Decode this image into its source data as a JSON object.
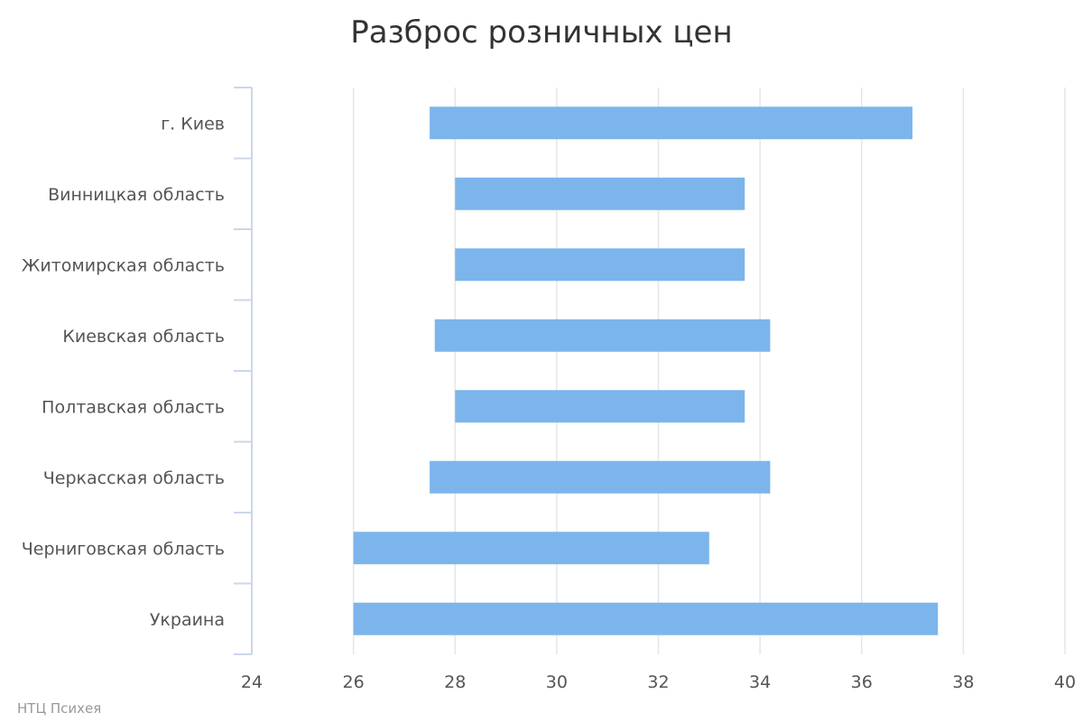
{
  "chart_data": {
    "type": "bar",
    "orientation": "horizontal",
    "subtype": "range",
    "title": "Разброс розничных цен",
    "categories": [
      "г. Киев",
      "Винницкая область",
      "Житомирская область",
      "Киевская область",
      "Полтавская область",
      "Черкасская область",
      "Черниговская область",
      "Украина"
    ],
    "series": [
      {
        "ranges": [
          [
            27.5,
            37.0
          ],
          [
            28.0,
            33.7
          ],
          [
            28.0,
            33.7
          ],
          [
            27.6,
            34.2
          ],
          [
            28.0,
            33.7
          ],
          [
            27.5,
            34.2
          ],
          [
            26.0,
            33.0
          ],
          [
            26.0,
            37.5
          ]
        ]
      }
    ],
    "xlim": [
      24,
      40
    ],
    "xticks": [
      24,
      26,
      28,
      30,
      32,
      34,
      36,
      38,
      40
    ],
    "grid": true,
    "legend": "none",
    "bar_color": "#7cb5ec"
  },
  "credits": "НТЦ Психея"
}
